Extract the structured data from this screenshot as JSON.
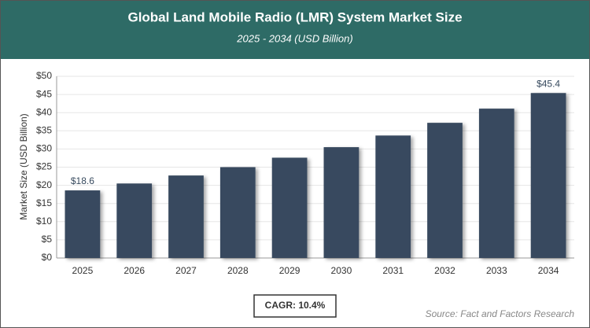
{
  "chart_data": {
    "type": "bar",
    "title": "Global Land Mobile Radio (LMR) System Market Size",
    "subtitle": "2025 - 2034 (USD Billion)",
    "y_label": "Market Size (USD Billion)",
    "categories": [
      "2025",
      "2026",
      "2027",
      "2028",
      "2029",
      "2030",
      "2031",
      "2032",
      "2033",
      "2034"
    ],
    "values": [
      18.6,
      20.5,
      22.7,
      25.0,
      27.6,
      30.5,
      33.7,
      37.2,
      41.1,
      45.4
    ],
    "value_labels": [
      "$18.6",
      null,
      null,
      null,
      null,
      null,
      null,
      null,
      null,
      "$45.4"
    ],
    "color": "#374a5e",
    "ylim": [
      0,
      50
    ],
    "yticks": [
      {
        "value": 0,
        "label": "$0"
      },
      {
        "value": 5,
        "label": "$5"
      },
      {
        "value": 10,
        "label": "$10"
      },
      {
        "value": 15,
        "label": "$15"
      },
      {
        "value": 20,
        "label": "$20"
      },
      {
        "value": 25,
        "label": "$25"
      },
      {
        "value": 30,
        "label": "$30"
      },
      {
        "value": 35,
        "label": "$35"
      },
      {
        "value": 40,
        "label": "$40"
      },
      {
        "value": 45,
        "label": "$45"
      },
      {
        "value": 50,
        "label": "$50"
      }
    ],
    "grid": true,
    "annotation": "CAGR: 10.4%",
    "source": "Source: Fact and Factors Research"
  }
}
